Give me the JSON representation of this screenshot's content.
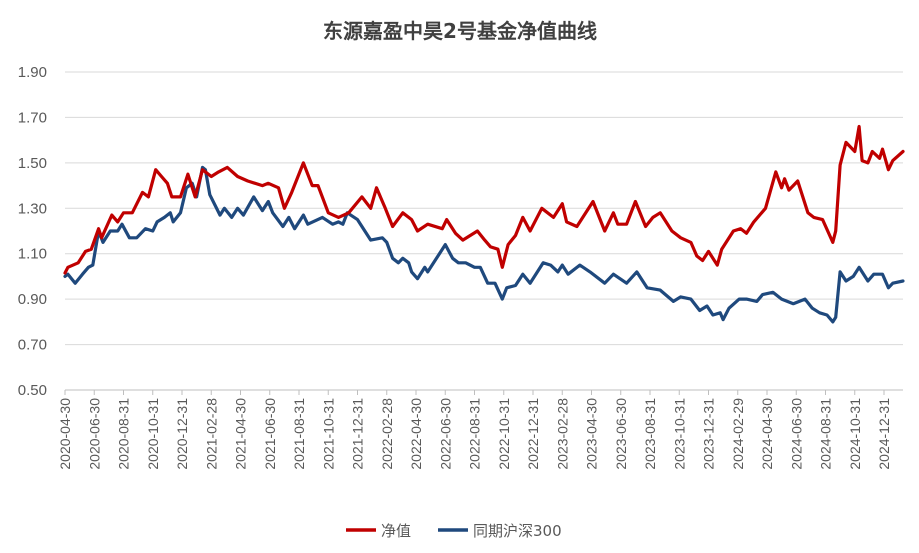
{
  "chart_data": {
    "type": "line",
    "title": "东源嘉盈中昊2号基金净值曲线",
    "xlabel": "",
    "ylabel": "",
    "x_unit": "months since 2020-04-30",
    "xlim": [
      0,
      57.3
    ],
    "ylim": [
      0.5,
      1.9
    ],
    "yticks": [
      0.5,
      0.7,
      0.9,
      1.1,
      1.3,
      1.5,
      1.7,
      1.9
    ],
    "ytick_labels": [
      "0.50",
      "0.70",
      "0.90",
      "1.10",
      "1.30",
      "1.50",
      "1.70",
      "1.90"
    ],
    "xtick_labels": [
      "2020-04-30",
      "2020-06-30",
      "2020-08-31",
      "2020-10-31",
      "2020-12-31",
      "2021-02-28",
      "2021-04-30",
      "2021-06-30",
      "2021-08-31",
      "2021-10-31",
      "2021-12-31",
      "2022-02-28",
      "2022-04-30",
      "2022-06-30",
      "2022-08-31",
      "2022-10-31",
      "2022-12-31",
      "2023-02-28",
      "2023-04-30",
      "2023-06-30",
      "2023-08-31",
      "2023-10-31",
      "2023-12-31",
      "2024-02-29",
      "2024-04-30",
      "2024-06-30",
      "2024-08-31",
      "2024-10-31",
      "2024-12-31"
    ],
    "grid": true,
    "legend_position": "bottom",
    "series": [
      {
        "name": "净值",
        "color": "#C00000",
        "x": [
          0,
          0.2,
          0.9,
          1.4,
          1.8,
          2.3,
          2.5,
          3.2,
          3.6,
          4.0,
          4.6,
          5.3,
          5.7,
          6.2,
          6.6,
          7.0,
          7.3,
          7.9,
          8.4,
          8.9,
          9.4,
          10.0,
          10.5,
          11.1,
          11.8,
          12.5,
          13.5,
          13.9,
          14.6,
          15.0,
          15.5,
          16.3,
          16.9,
          17.3,
          18.0,
          18.7,
          19.4,
          20.3,
          20.9,
          21.3,
          21.9,
          22.4,
          23.1,
          23.7,
          24.1,
          24.8,
          25.8,
          26.1,
          26.7,
          27.2,
          28.2,
          28.7,
          29.1,
          29.6,
          29.9,
          30.3,
          30.8,
          31.3,
          31.8,
          32.6,
          33.4,
          34.0,
          34.3,
          35.0,
          36.1,
          36.9,
          37.5,
          37.8,
          38.4,
          39.0,
          39.7,
          40.2,
          40.7,
          41.5,
          42.1,
          42.8,
          43.2,
          43.6,
          44.0,
          44.6,
          44.9,
          45.7,
          46.2,
          46.6,
          47.1,
          47.9,
          48.6,
          49.0,
          49.2,
          49.5,
          50.1,
          50.8,
          51.2,
          51.8,
          52.5,
          52.7,
          53.0,
          53.4,
          54.0,
          54.3,
          54.5,
          54.9,
          55.2,
          55.7,
          55.9,
          56.3,
          56.6,
          57.3
        ],
        "values": [
          1.015,
          1.04,
          1.06,
          1.11,
          1.12,
          1.21,
          1.17,
          1.27,
          1.24,
          1.28,
          1.28,
          1.37,
          1.35,
          1.47,
          1.44,
          1.41,
          1.35,
          1.35,
          1.45,
          1.35,
          1.47,
          1.44,
          1.46,
          1.48,
          1.44,
          1.42,
          1.4,
          1.41,
          1.39,
          1.3,
          1.37,
          1.5,
          1.4,
          1.4,
          1.28,
          1.26,
          1.28,
          1.35,
          1.3,
          1.39,
          1.3,
          1.22,
          1.28,
          1.25,
          1.2,
          1.23,
          1.21,
          1.25,
          1.19,
          1.16,
          1.2,
          1.16,
          1.13,
          1.12,
          1.04,
          1.14,
          1.18,
          1.26,
          1.2,
          1.3,
          1.26,
          1.32,
          1.24,
          1.22,
          1.33,
          1.2,
          1.28,
          1.23,
          1.23,
          1.33,
          1.22,
          1.26,
          1.28,
          1.2,
          1.17,
          1.15,
          1.09,
          1.07,
          1.11,
          1.05,
          1.12,
          1.2,
          1.21,
          1.19,
          1.24,
          1.3,
          1.46,
          1.39,
          1.43,
          1.38,
          1.42,
          1.28,
          1.26,
          1.25,
          1.15,
          1.2,
          1.49,
          1.59,
          1.55,
          1.66,
          1.51,
          1.5,
          1.55,
          1.52,
          1.56,
          1.47,
          1.51,
          1.55
        ]
      },
      {
        "name": "同期沪深300",
        "color": "#1F497D",
        "x": [
          0,
          0.2,
          0.7,
          1.2,
          1.6,
          1.9,
          2.3,
          2.6,
          3.1,
          3.6,
          3.9,
          4.4,
          4.9,
          5.5,
          6.0,
          6.3,
          6.8,
          7.2,
          7.4,
          7.9,
          8.3,
          8.7,
          9.0,
          9.4,
          9.6,
          9.9,
          10.6,
          10.9,
          11.4,
          11.8,
          12.2,
          12.9,
          13.5,
          13.9,
          14.2,
          14.9,
          15.3,
          15.7,
          16.3,
          16.6,
          17.6,
          18.3,
          18.7,
          19.0,
          19.3,
          20.0,
          20.9,
          21.7,
          22.0,
          22.4,
          22.8,
          23.1,
          23.5,
          23.7,
          24.1,
          24.6,
          24.8,
          25.4,
          26.0,
          26.5,
          26.9,
          27.4,
          28.0,
          28.4,
          28.9,
          29.4,
          29.9,
          30.2,
          30.8,
          31.3,
          31.8,
          32.7,
          33.2,
          33.7,
          34.0,
          34.4,
          35.2,
          35.9,
          36.9,
          37.5,
          38.4,
          39.1,
          39.8,
          40.7,
          41.6,
          42.1,
          42.8,
          43.4,
          43.9,
          44.3,
          44.8,
          45.0,
          45.4,
          46.1,
          46.6,
          47.3,
          47.7,
          48.4,
          49.0,
          49.8,
          50.6,
          51.1,
          51.6,
          52.1,
          52.5,
          52.7,
          53.0,
          53.4,
          53.9,
          54.3,
          54.9,
          55.3,
          55.9,
          56.3,
          56.6,
          57.3
        ],
        "values": [
          1.0,
          1.01,
          0.97,
          1.01,
          1.04,
          1.05,
          1.2,
          1.15,
          1.2,
          1.2,
          1.23,
          1.17,
          1.17,
          1.21,
          1.2,
          1.24,
          1.26,
          1.28,
          1.24,
          1.28,
          1.39,
          1.41,
          1.35,
          1.48,
          1.47,
          1.36,
          1.27,
          1.3,
          1.26,
          1.3,
          1.27,
          1.35,
          1.29,
          1.33,
          1.28,
          1.22,
          1.26,
          1.21,
          1.27,
          1.23,
          1.26,
          1.23,
          1.24,
          1.23,
          1.28,
          1.25,
          1.16,
          1.17,
          1.15,
          1.08,
          1.06,
          1.08,
          1.06,
          1.02,
          0.99,
          1.04,
          1.02,
          1.08,
          1.14,
          1.08,
          1.06,
          1.06,
          1.04,
          1.04,
          0.97,
          0.97,
          0.9,
          0.95,
          0.96,
          1.01,
          0.97,
          1.06,
          1.05,
          1.02,
          1.05,
          1.01,
          1.05,
          1.02,
          0.97,
          1.01,
          0.97,
          1.02,
          0.95,
          0.94,
          0.89,
          0.91,
          0.9,
          0.85,
          0.87,
          0.83,
          0.84,
          0.81,
          0.86,
          0.9,
          0.9,
          0.89,
          0.92,
          0.93,
          0.9,
          0.88,
          0.9,
          0.86,
          0.84,
          0.83,
          0.8,
          0.82,
          1.02,
          0.98,
          1.0,
          1.04,
          0.98,
          1.01,
          1.01,
          0.95,
          0.97,
          0.98
        ]
      }
    ]
  }
}
